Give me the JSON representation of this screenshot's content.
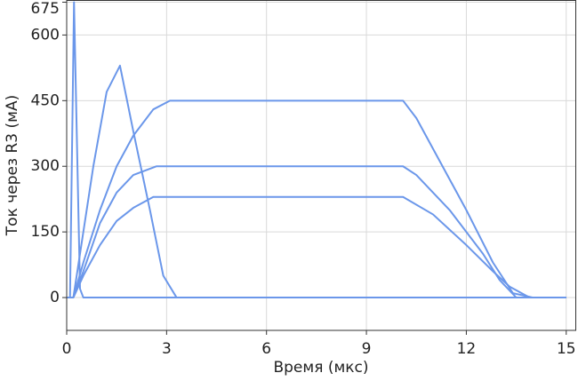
{
  "chart_data": {
    "type": "line",
    "xlabel": "Время (мкс)",
    "ylabel": "Ток через R3 (мА)",
    "xlim": [
      0,
      15.3
    ],
    "ylim": [
      -75,
      680
    ],
    "xticks": [
      0,
      3,
      6,
      9,
      12,
      15
    ],
    "yticks": [
      0,
      150,
      300,
      450,
      600,
      675
    ],
    "grid": true,
    "series": [
      {
        "color": "#6b97ea",
        "x": [
          0,
          0.1,
          0.22,
          0.4,
          0.5,
          15
        ],
        "values": [
          0,
          0,
          675,
          20,
          0,
          0
        ]
      },
      {
        "color": "#6b97ea",
        "x": [
          0,
          0.2,
          0.5,
          0.8,
          1.2,
          1.6,
          2.0,
          2.5,
          2.9,
          3.3,
          15
        ],
        "values": [
          0,
          0,
          150,
          300,
          470,
          530,
          380,
          200,
          50,
          0,
          0
        ]
      },
      {
        "color": "#6b97ea",
        "x": [
          0.2,
          0.5,
          1,
          1.5,
          2,
          2.6,
          3.1,
          10.1,
          10.5,
          11,
          12,
          12.8,
          13.4,
          14,
          15
        ],
        "values": [
          0,
          80,
          200,
          300,
          370,
          430,
          450,
          450,
          410,
          340,
          200,
          80,
          10,
          0,
          0
        ]
      },
      {
        "color": "#6b97ea",
        "x": [
          0.2,
          0.5,
          1,
          1.5,
          2,
          2.7,
          10.1,
          10.5,
          11.5,
          12.5,
          13,
          13.5,
          15
        ],
        "values": [
          0,
          60,
          170,
          240,
          280,
          300,
          300,
          280,
          200,
          100,
          40,
          0,
          0
        ]
      },
      {
        "color": "#6b97ea",
        "x": [
          0.2,
          0.5,
          1,
          1.5,
          2,
          2.6,
          10.1,
          11,
          12,
          12.8,
          13.3,
          13.9,
          15
        ],
        "values": [
          0,
          50,
          120,
          175,
          205,
          230,
          230,
          190,
          120,
          60,
          25,
          0,
          0
        ]
      }
    ]
  }
}
